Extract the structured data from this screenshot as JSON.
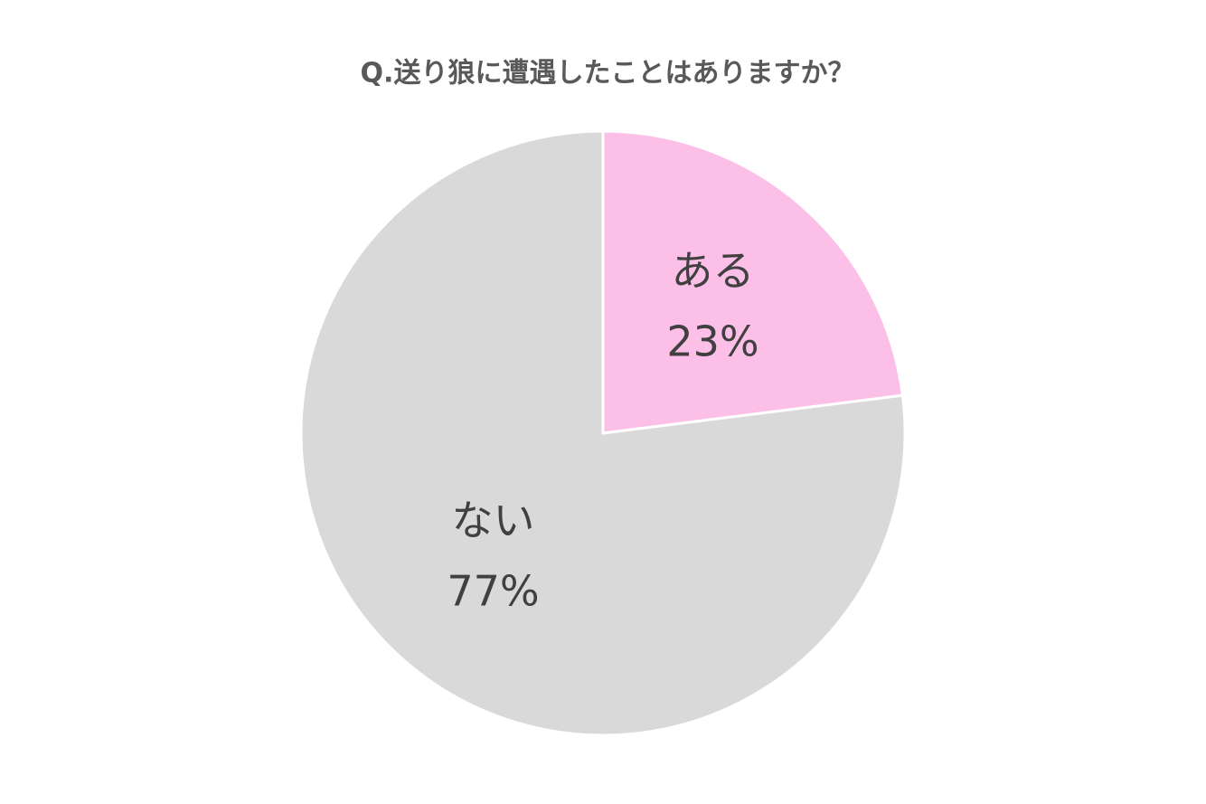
{
  "chart_data": {
    "type": "pie",
    "title": "Q.送り狼に遭遇したことはありますか？",
    "categories": [
      "ある",
      "ない"
    ],
    "values": [
      23,
      77
    ],
    "value_labels": [
      "23%",
      "77%"
    ],
    "colors": [
      "#fcbfe8",
      "#d9d9d9"
    ]
  }
}
